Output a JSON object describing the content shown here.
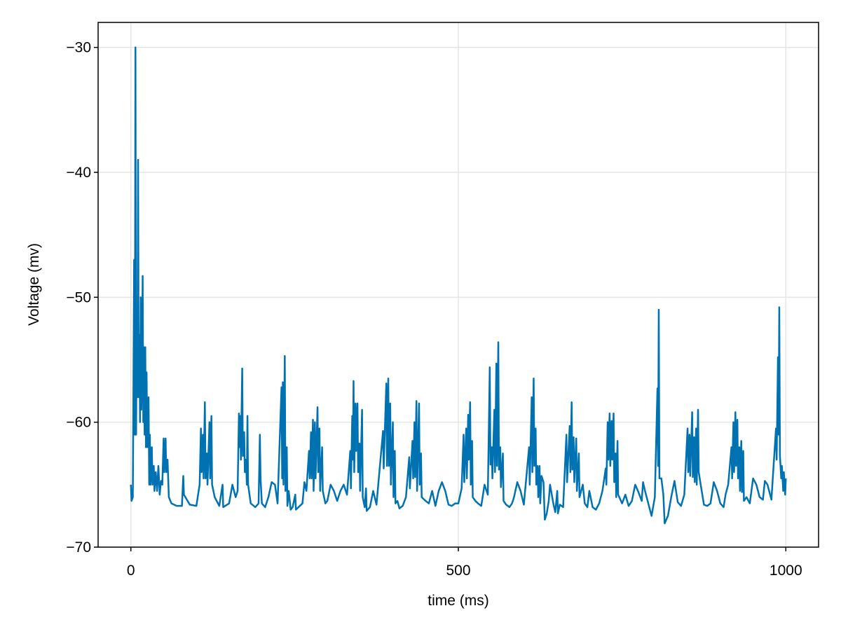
{
  "chart_data": {
    "type": "line",
    "x_label": "time (ms)",
    "y_label": "Voltage (mv)",
    "xlim": [
      -50,
      1050
    ],
    "ylim": [
      -70,
      -28
    ],
    "xticks": [
      0,
      500,
      1000
    ],
    "yticks": [
      {
        "value": -70,
        "label": "−70"
      },
      {
        "value": -60,
        "label": "−60"
      },
      {
        "value": -50,
        "label": "−50"
      },
      {
        "value": -40,
        "label": "−40"
      },
      {
        "value": -30,
        "label": "−30"
      }
    ],
    "grid": true,
    "x": [
      0,
      1,
      3,
      5,
      6,
      7,
      8,
      9,
      10,
      11,
      12,
      13,
      14,
      15,
      16,
      17,
      18,
      19,
      20,
      21,
      22,
      23,
      24,
      25,
      27,
      28,
      29,
      30,
      32,
      33,
      35,
      36,
      38,
      40,
      42,
      44,
      46,
      48,
      50,
      51,
      53,
      54,
      56,
      58,
      62,
      70,
      78,
      80,
      81,
      90,
      100,
      105,
      107,
      108,
      110,
      111,
      113,
      114,
      116,
      117,
      120,
      121,
      123,
      124,
      128,
      135,
      140,
      141,
      150,
      155,
      160,
      163,
      165,
      166,
      167,
      168,
      170,
      171,
      173,
      174,
      176,
      177,
      178,
      179,
      183,
      190,
      195,
      197,
      198,
      200,
      205,
      210,
      215,
      220,
      224,
      230,
      231,
      232,
      233,
      235,
      236,
      238,
      239,
      241,
      244,
      247,
      251,
      252,
      262,
      265,
      268,
      272,
      273,
      275,
      276,
      278,
      279,
      281,
      282,
      285,
      286,
      288,
      289,
      292,
      293,
      297,
      300,
      305,
      310,
      315,
      320,
      325,
      330,
      335,
      336,
      338,
      339,
      340,
      341,
      343,
      344,
      346,
      347,
      349,
      350,
      353,
      354,
      357,
      359,
      360,
      365,
      370,
      375,
      385,
      386,
      390,
      391,
      393,
      394,
      396,
      397,
      400,
      401,
      403,
      404,
      407,
      410,
      415,
      420,
      425,
      426,
      430,
      431,
      433,
      434,
      436,
      437,
      440,
      441,
      443,
      444,
      450,
      455,
      460,
      465,
      470,
      475,
      480,
      485,
      490,
      495,
      500,
      505,
      508,
      509,
      512,
      513,
      515,
      516,
      518,
      519,
      521,
      522,
      526,
      530,
      535,
      540,
      545,
      548,
      549,
      551,
      552,
      555,
      556,
      558,
      559,
      561,
      562,
      564,
      565,
      568,
      569,
      573,
      578,
      582,
      585,
      590,
      595,
      600,
      608,
      609,
      612,
      613,
      615,
      616,
      618,
      619,
      621,
      622,
      624,
      625,
      627,
      630,
      632,
      635,
      638,
      640,
      645,
      648,
      651,
      652,
      655,
      660,
      665,
      666,
      670,
      671,
      673,
      674,
      676,
      677,
      680,
      681,
      684,
      685,
      690,
      693,
      697,
      700,
      705,
      710,
      715,
      720,
      725,
      726,
      728,
      729,
      731,
      732,
      734,
      735,
      737,
      738,
      740,
      741,
      743,
      744,
      750,
      755,
      760,
      765,
      770,
      775,
      780,
      782,
      785,
      790,
      795,
      800,
      804,
      805,
      806,
      807,
      810,
      813,
      815,
      820,
      825,
      830,
      835,
      840,
      845,
      850,
      851,
      853,
      854,
      857,
      858,
      860,
      861,
      863,
      864,
      866,
      867,
      870,
      875,
      880,
      885,
      890,
      895,
      900,
      905,
      908,
      912,
      917,
      918,
      920,
      921,
      923,
      924,
      926,
      927,
      929,
      930,
      932,
      933,
      935,
      936,
      940,
      945,
      950,
      955,
      960,
      965,
      968,
      972,
      978,
      985,
      986,
      988,
      989,
      990,
      991,
      993,
      994,
      996,
      997,
      999,
      1000
    ],
    "series": [
      {
        "color": "#0072b2",
        "values": [
          -65,
          -66.3,
          -66,
          -47,
          -61,
          -30,
          -61,
          -53,
          -58,
          -39,
          -58,
          -53,
          -60,
          -50,
          -59,
          -56,
          -48.3,
          -60,
          -54,
          -61,
          -54,
          -62,
          -56,
          -62,
          -58,
          -65,
          -61,
          -65,
          -62,
          -65,
          -63.5,
          -65.5,
          -64,
          -65.5,
          -63.5,
          -65.8,
          -64.7,
          -65,
          -61.3,
          -64,
          -61.3,
          -64,
          -63,
          -66,
          -66.5,
          -66.7,
          -66.7,
          -64.3,
          -65.8,
          -66.6,
          -66.7,
          -65,
          -60.5,
          -64,
          -61,
          -64.5,
          -58.4,
          -64.5,
          -62.5,
          -65,
          -60,
          -64.5,
          -59.5,
          -65,
          -66,
          -66.7,
          -65,
          -66.8,
          -66.5,
          -65,
          -66,
          -65.5,
          -59.3,
          -62,
          -59.5,
          -63,
          -55.7,
          -62.7,
          -60.8,
          -64,
          -63,
          -65,
          -59.5,
          -65,
          -66.5,
          -66.8,
          -66.5,
          -61,
          -64.5,
          -66.5,
          -66.8,
          -66,
          -64.8,
          -65,
          -66.5,
          -57.2,
          -64.5,
          -56.8,
          -65,
          -54.7,
          -65.5,
          -62,
          -66.7,
          -65.5,
          -67,
          -66.8,
          -65.8,
          -67,
          -66.5,
          -64.8,
          -65.5,
          -62.3,
          -64.5,
          -60.8,
          -64.5,
          -59.8,
          -65.5,
          -60,
          -64.5,
          -58.8,
          -64,
          -60.5,
          -65.5,
          -62,
          -65.5,
          -66.5,
          -66.3,
          -65,
          -65.5,
          -66.3,
          -65.5,
          -65,
          -65.8,
          -62.3,
          -65.3,
          -59.5,
          -63,
          -56.7,
          -64,
          -58.5,
          -62.3,
          -58.5,
          -64,
          -61.7,
          -65.5,
          -59,
          -66,
          -66.8,
          -65.3,
          -67.1,
          -66.8,
          -65.5,
          -66.6,
          -60.7,
          -63.7,
          -56.9,
          -63.5,
          -56.5,
          -63.5,
          -58.5,
          -65,
          -60,
          -66,
          -62.3,
          -66.5,
          -66.3,
          -66.9,
          -66.7,
          -66,
          -62.8,
          -65.3,
          -61.5,
          -64.5,
          -60,
          -64.4,
          -58.3,
          -65.5,
          -58.5,
          -65,
          -62.5,
          -66,
          -66.3,
          -66.5,
          -65.5,
          -66.7,
          -65.5,
          -64.8,
          -65.5,
          -66.6,
          -66.7,
          -66.5,
          -66.5,
          -65.3,
          -61,
          -64.8,
          -60.5,
          -64.5,
          -59.4,
          -63,
          -58.4,
          -65,
          -61.5,
          -66,
          -66.3,
          -66.5,
          -66.7,
          -65,
          -65.8,
          -55.6,
          -63.4,
          -62,
          -64.5,
          -59,
          -64,
          -55.3,
          -63.5,
          -53.6,
          -63.8,
          -62,
          -65.2,
          -62.5,
          -66.3,
          -66.6,
          -66.8,
          -66.5,
          -66,
          -64.8,
          -65.5,
          -66.6,
          -62,
          -65,
          -58,
          -64,
          -56.5,
          -63.5,
          -60.5,
          -65,
          -63.5,
          -66,
          -63.5,
          -66.5,
          -64.3,
          -64.8,
          -67.8,
          -67.3,
          -66.3,
          -65,
          -66.5,
          -67.2,
          -65.5,
          -67.3,
          -66.6,
          -66.8,
          -61,
          -64.8,
          -60.3,
          -64,
          -58.4,
          -63.8,
          -61.2,
          -64.8,
          -61.3,
          -65.5,
          -62.5,
          -66,
          -65,
          -66.5,
          -66.8,
          -65.5,
          -66.8,
          -67,
          -66.5,
          -65.5,
          -63.7,
          -65,
          -60,
          -63,
          -59.3,
          -63.5,
          -59.9,
          -63,
          -59.3,
          -64.8,
          -62.5,
          -66,
          -61.5,
          -65.8,
          -66.5,
          -65.8,
          -66.7,
          -66.3,
          -65,
          -65.6,
          -66.3,
          -64.8,
          -65.5,
          -66.5,
          -67.5,
          -66,
          -57.3,
          -63.5,
          -51,
          -64.5,
          -64.5,
          -65.8,
          -68.1,
          -67.5,
          -66,
          -64.7,
          -66.4,
          -66.7,
          -65.8,
          -60.5,
          -64,
          -61,
          -64.3,
          -59.2,
          -64.4,
          -61.2,
          -64.8,
          -60.5,
          -65,
          -59,
          -64,
          -65,
          -66.6,
          -66.7,
          -66.5,
          -64.8,
          -65.5,
          -66.5,
          -66.8,
          -65.8,
          -65,
          -62,
          -64.5,
          -60,
          -64,
          -59.2,
          -63.5,
          -59.8,
          -64.5,
          -62,
          -65.5,
          -61.5,
          -65.6,
          -62.3,
          -66.3,
          -66,
          -66.5,
          -64.5,
          -65,
          -66,
          -66.2,
          -64.7,
          -65,
          -66.2,
          -60.5,
          -63,
          -54.8,
          -61,
          -50.8,
          -62.7,
          -64.5,
          -63.5,
          -65.5,
          -64,
          -65.8,
          -64.5
        ]
      }
    ]
  }
}
